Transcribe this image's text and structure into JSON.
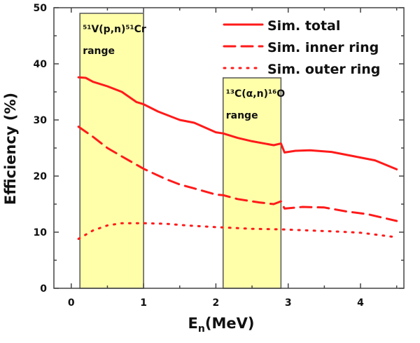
{
  "chart_data": {
    "type": "line",
    "title": "",
    "ylabel": "Efficiency (%)",
    "xlabel": {
      "main": "E",
      "sub": "n",
      "unit": "(MeV)"
    },
    "xlim": [
      -0.24,
      4.6
    ],
    "ylim": [
      0,
      50
    ],
    "xticks": [
      "0",
      "1",
      "2",
      "3",
      "4"
    ],
    "yticks": [
      "0",
      "10",
      "20",
      "30",
      "40",
      "50"
    ],
    "grid": false,
    "legend_position": "top-right",
    "color": "#ff1a1a",
    "regions": [
      {
        "label_line1": "⁵¹V(p,n)⁵¹Cr",
        "label_line2": "range",
        "x": [
          0.12,
          1.0
        ],
        "top": 49,
        "fill": "#ffffaa"
      },
      {
        "label_line1": "¹³C(α,n)¹⁶O",
        "label_line2": "range",
        "x": [
          2.1,
          2.9
        ],
        "top": 37.5,
        "fill": "#ffffaa"
      }
    ],
    "series": [
      {
        "name": "Sim. total",
        "style": "solid",
        "x": [
          0.1,
          0.2,
          0.3,
          0.5,
          0.7,
          0.9,
          1.0,
          1.2,
          1.5,
          1.7,
          2.0,
          2.1,
          2.3,
          2.5,
          2.8,
          2.9,
          2.95,
          3.1,
          3.3,
          3.6,
          3.8,
          4.0,
          4.2,
          4.5
        ],
        "y": [
          37.6,
          37.5,
          36.8,
          36.0,
          35.0,
          33.2,
          32.8,
          31.5,
          30.0,
          29.5,
          27.8,
          27.6,
          26.8,
          26.2,
          25.5,
          25.8,
          24.2,
          24.5,
          24.6,
          24.3,
          23.8,
          23.3,
          22.8,
          21.2
        ]
      },
      {
        "name": "Sim. inner ring",
        "style": "dashed",
        "x": [
          0.1,
          0.3,
          0.5,
          0.7,
          1.0,
          1.3,
          1.5,
          1.7,
          2.0,
          2.1,
          2.3,
          2.6,
          2.8,
          2.9,
          2.95,
          3.2,
          3.5,
          3.8,
          4.1,
          4.5
        ],
        "y": [
          28.8,
          27.0,
          25.0,
          23.5,
          21.3,
          19.5,
          18.5,
          17.8,
          16.7,
          16.6,
          15.9,
          15.3,
          15.0,
          15.5,
          14.2,
          14.5,
          14.4,
          13.7,
          13.2,
          12.0
        ]
      },
      {
        "name": "Sim. outer ring",
        "style": "dotted",
        "x": [
          0.1,
          0.3,
          0.5,
          0.7,
          1.0,
          1.3,
          1.6,
          2.0,
          2.5,
          2.9,
          3.3,
          3.7,
          4.0,
          4.5
        ],
        "y": [
          8.8,
          10.3,
          11.2,
          11.6,
          11.6,
          11.5,
          11.2,
          10.9,
          10.6,
          10.5,
          10.3,
          10.1,
          9.9,
          9.1
        ]
      }
    ]
  }
}
